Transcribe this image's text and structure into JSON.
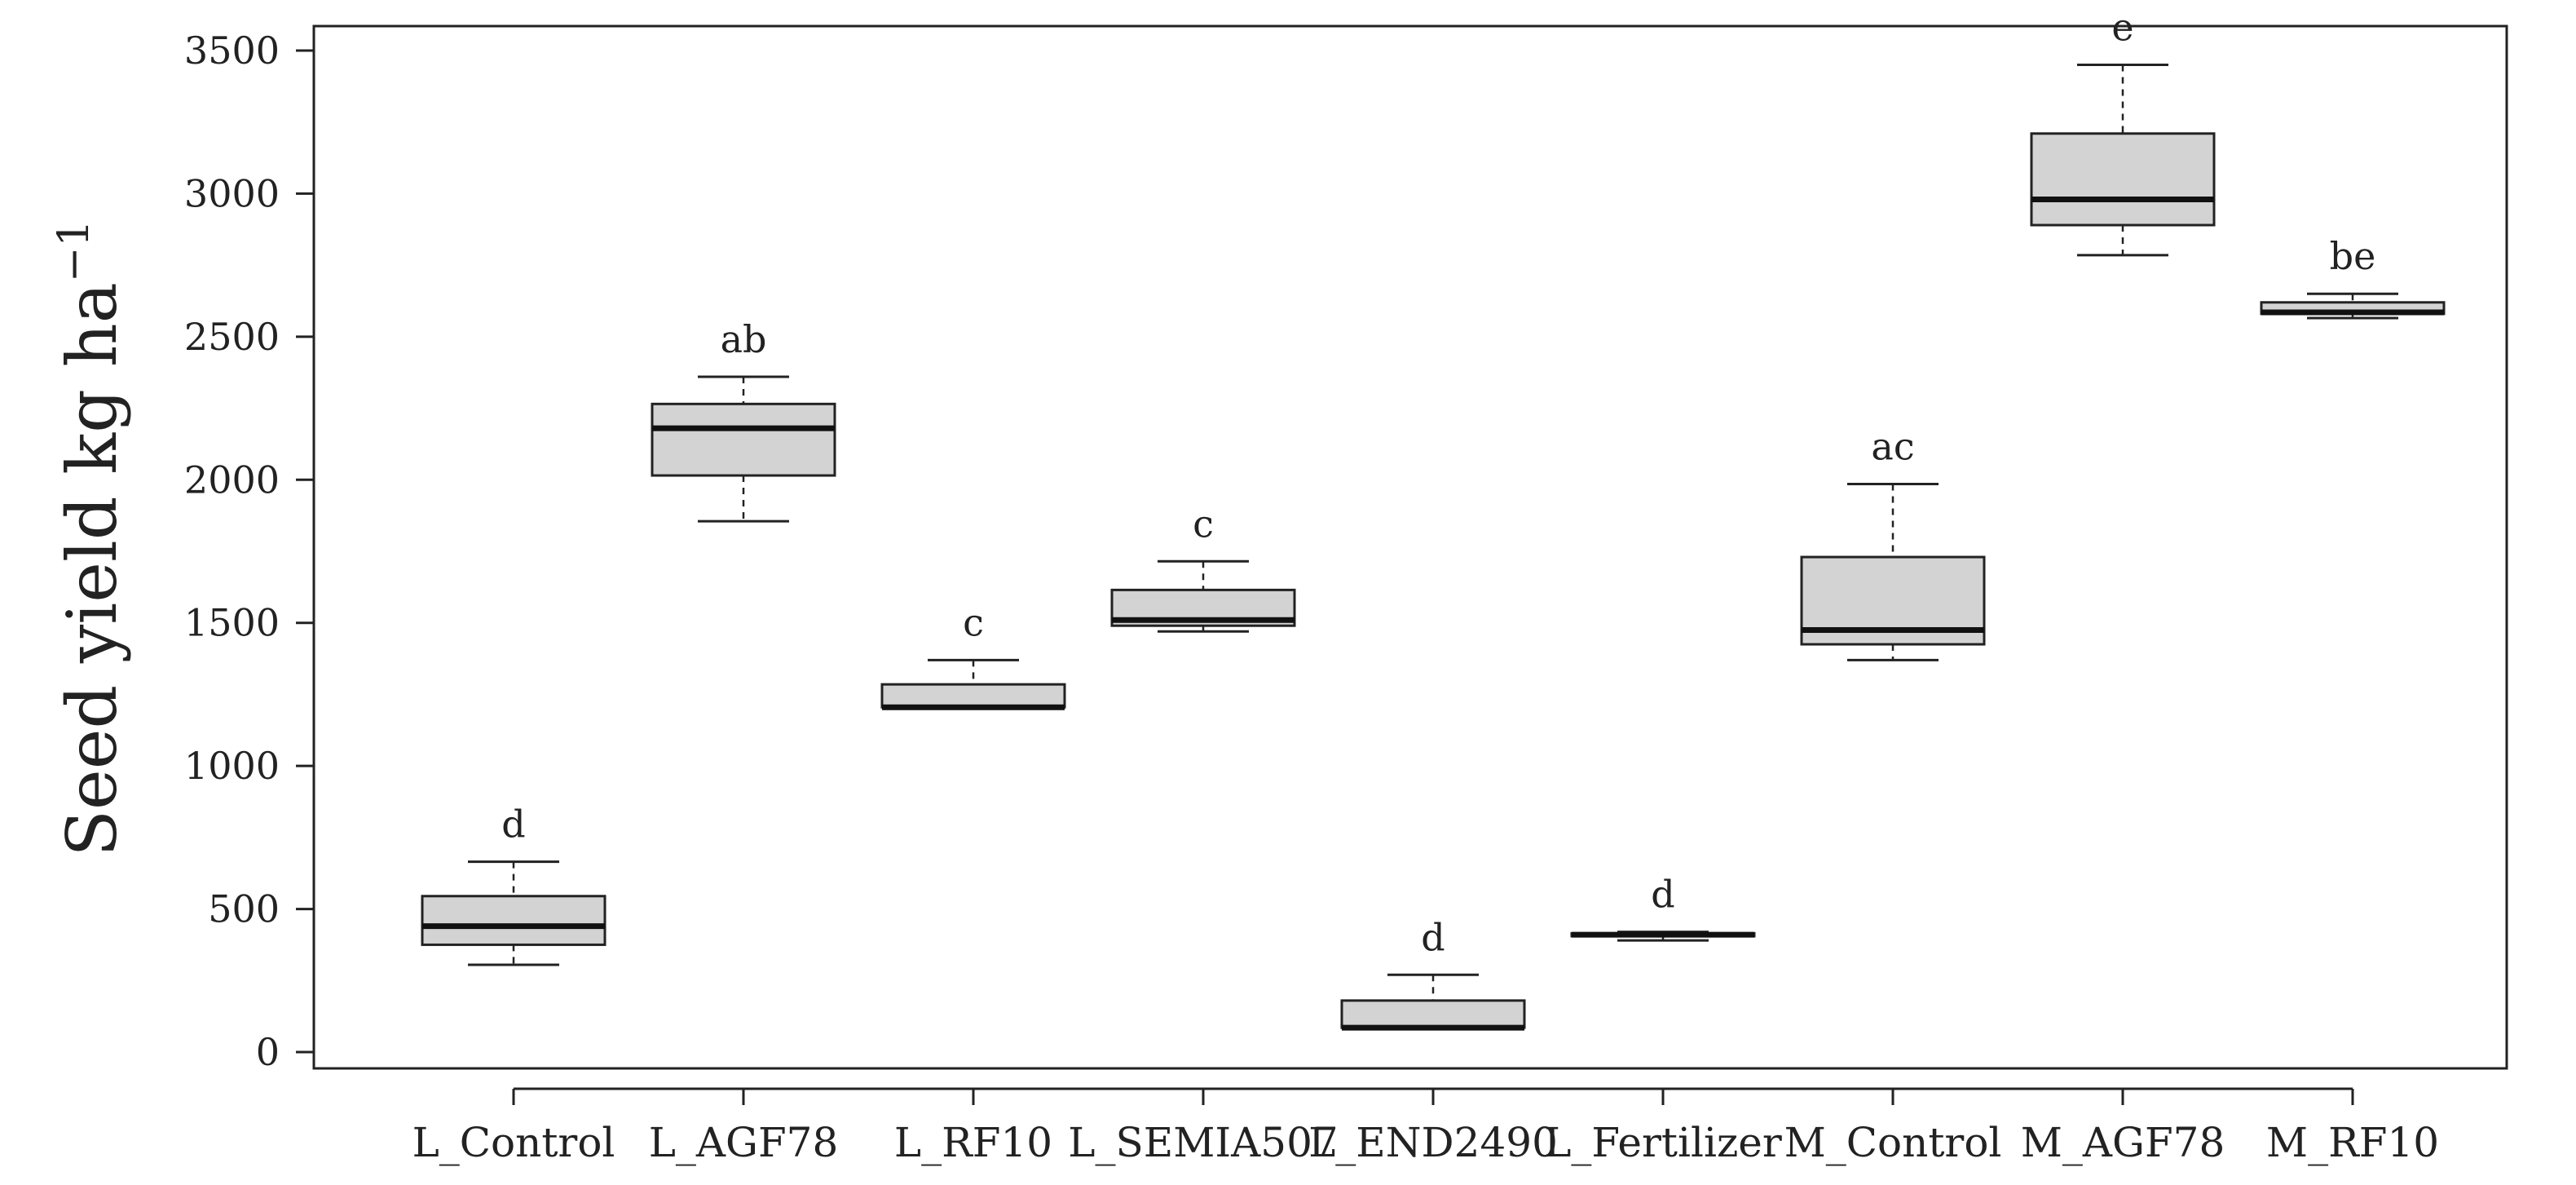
{
  "chart_data": {
    "type": "boxplot",
    "ylabel": "Seed yield kg ha",
    "ylabel_superscript": "−1",
    "yticks": [
      0,
      500,
      1000,
      1500,
      2000,
      2500,
      3000,
      3500
    ],
    "ylim": [
      -50,
      3600
    ],
    "grid": false,
    "box_fill": "#d3d3d3",
    "categories": [
      "L_Control",
      "L_AGF78",
      "L_RF10",
      "L_SEMIA507",
      "L_END2490",
      "L_Fertilizer",
      "M_Control",
      "M_AGF78",
      "M_RF10"
    ],
    "boxes": [
      {
        "category": "L_Control",
        "min": 305,
        "q1": 375,
        "median": 440,
        "q3": 545,
        "max": 665,
        "letter": "d"
      },
      {
        "category": "L_AGF78",
        "min": 1855,
        "q1": 2015,
        "median": 2180,
        "q3": 2265,
        "max": 2360,
        "letter": "ab"
      },
      {
        "category": "L_RF10",
        "min": 1205,
        "q1": 1205,
        "median": 1205,
        "q3": 1285,
        "max": 1370,
        "letter": "c"
      },
      {
        "category": "L_SEMIA507",
        "min": 1470,
        "q1": 1490,
        "median": 1510,
        "q3": 1615,
        "max": 1715,
        "letter": "c"
      },
      {
        "category": "L_END2490",
        "min": 85,
        "q1": 85,
        "median": 85,
        "q3": 180,
        "max": 270,
        "letter": "d"
      },
      {
        "category": "L_Fertilizer",
        "min": 390,
        "q1": 405,
        "median": 410,
        "q3": 415,
        "max": 420,
        "letter": "d"
      },
      {
        "category": "M_Control",
        "min": 1370,
        "q1": 1425,
        "median": 1475,
        "q3": 1730,
        "max": 1985,
        "letter": "ac"
      },
      {
        "category": "M_AGF78",
        "min": 2785,
        "q1": 2890,
        "median": 2980,
        "q3": 3210,
        "max": 3450,
        "letter": "e"
      },
      {
        "category": "M_RF10",
        "min": 2565,
        "q1": 2580,
        "median": 2585,
        "q3": 2620,
        "max": 2650,
        "letter": "be"
      }
    ]
  }
}
